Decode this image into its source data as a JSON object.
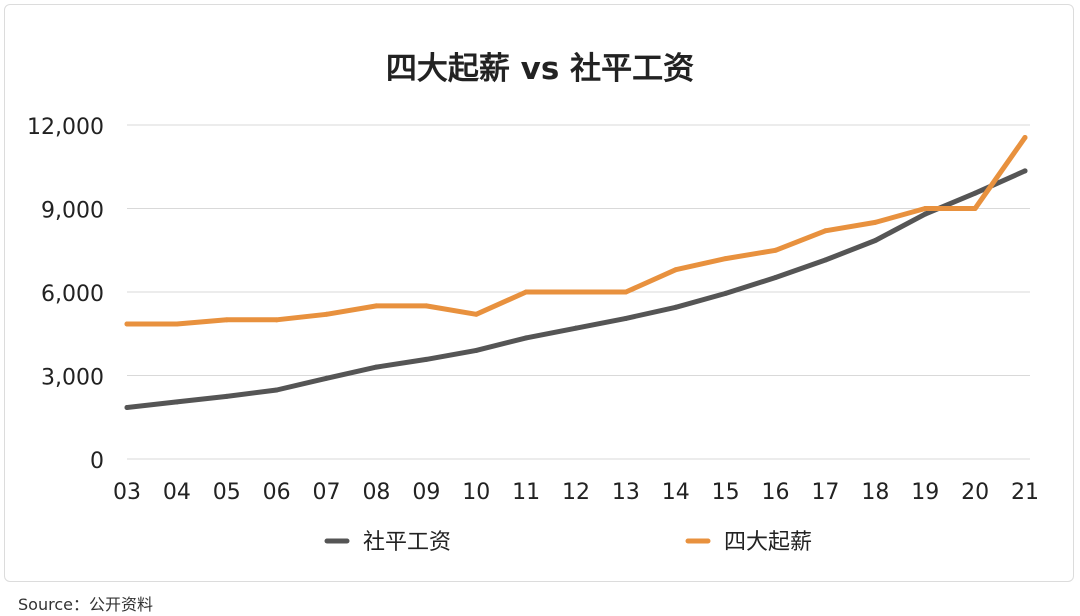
{
  "chart_data": {
    "type": "line",
    "title": "四大起薪 vs 社平工资",
    "xlabel": "",
    "ylabel": "",
    "categories": [
      "03",
      "04",
      "05",
      "06",
      "07",
      "08",
      "09",
      "10",
      "11",
      "12",
      "13",
      "14",
      "15",
      "16",
      "17",
      "18",
      "19",
      "20",
      "21"
    ],
    "ylim": [
      0,
      12000
    ],
    "yticks": [
      "0",
      "3,000",
      "6,000",
      "9,000",
      "12,000"
    ],
    "ytick_values": [
      0,
      3000,
      6000,
      9000,
      12000
    ],
    "grid": true,
    "legend_position": "bottom",
    "series": [
      {
        "name": "社平工资",
        "color": "#555555",
        "values": [
          1850,
          2050,
          2250,
          2480,
          2900,
          3300,
          3580,
          3900,
          4350,
          4700,
          5050,
          5450,
          5950,
          6520,
          7150,
          7850,
          8800,
          9550,
          10350
        ]
      },
      {
        "name": "四大起薪",
        "color": "#e8913e",
        "values": [
          4850,
          4850,
          5000,
          5000,
          5200,
          5500,
          5500,
          5200,
          6000,
          6000,
          6000,
          6800,
          7200,
          7500,
          8200,
          8500,
          9000,
          9000,
          11550
        ]
      }
    ]
  },
  "source": {
    "label": "Source：",
    "value": "公开资料"
  }
}
